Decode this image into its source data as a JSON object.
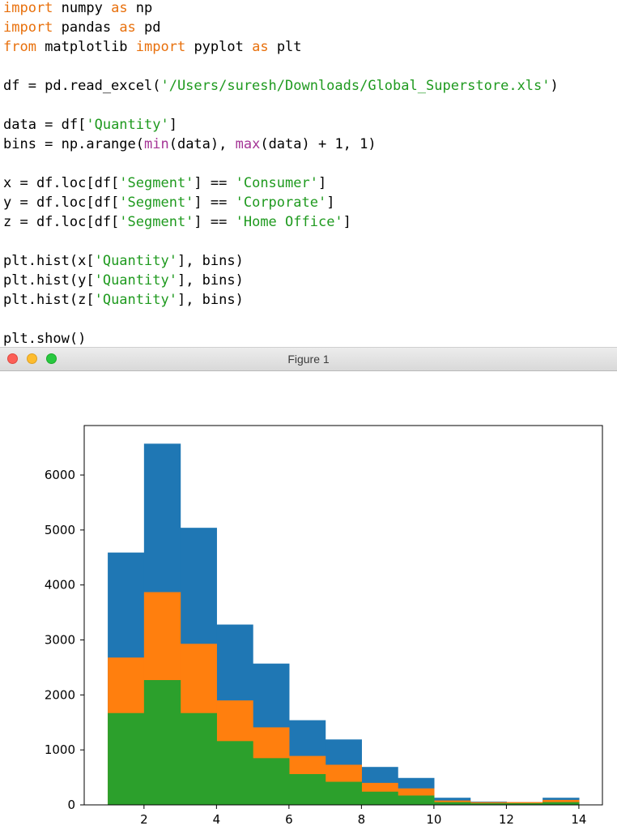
{
  "code": {
    "lines": [
      [
        {
          "t": "import",
          "c": "kw"
        },
        {
          "t": " numpy "
        },
        {
          "t": "as",
          "c": "kw"
        },
        {
          "t": " np"
        }
      ],
      [
        {
          "t": "import",
          "c": "kw"
        },
        {
          "t": " pandas "
        },
        {
          "t": "as",
          "c": "kw"
        },
        {
          "t": " pd"
        }
      ],
      [
        {
          "t": "from",
          "c": "kw"
        },
        {
          "t": " matplotlib "
        },
        {
          "t": "import",
          "c": "kw"
        },
        {
          "t": " pyplot "
        },
        {
          "t": "as",
          "c": "kw"
        },
        {
          "t": " plt"
        }
      ],
      [],
      [
        {
          "t": "df = pd.read_excel("
        },
        {
          "t": "'/Users/suresh/Downloads/Global_Superstore.xls'",
          "c": "str"
        },
        {
          "t": ")"
        }
      ],
      [],
      [
        {
          "t": "data = df["
        },
        {
          "t": "'Quantity'",
          "c": "str"
        },
        {
          "t": "]"
        }
      ],
      [
        {
          "t": "bins = np.arange("
        },
        {
          "t": "min",
          "c": "fn"
        },
        {
          "t": "(data), "
        },
        {
          "t": "max",
          "c": "fn"
        },
        {
          "t": "(data) + 1, 1)"
        }
      ],
      [],
      [
        {
          "t": "x = df.loc[df["
        },
        {
          "t": "'Segment'",
          "c": "str"
        },
        {
          "t": "] == "
        },
        {
          "t": "'Consumer'",
          "c": "str"
        },
        {
          "t": "]"
        }
      ],
      [
        {
          "t": "y = df.loc[df["
        },
        {
          "t": "'Segment'",
          "c": "str"
        },
        {
          "t": "] == "
        },
        {
          "t": "'Corporate'",
          "c": "str"
        },
        {
          "t": "]"
        }
      ],
      [
        {
          "t": "z = df.loc[df["
        },
        {
          "t": "'Segment'",
          "c": "str"
        },
        {
          "t": "] == "
        },
        {
          "t": "'Home Office'",
          "c": "str"
        },
        {
          "t": "]"
        }
      ],
      [],
      [
        {
          "t": "plt.hist(x["
        },
        {
          "t": "'Quantity'",
          "c": "str"
        },
        {
          "t": "], bins)"
        }
      ],
      [
        {
          "t": "plt.hist(y["
        },
        {
          "t": "'Quantity'",
          "c": "str"
        },
        {
          "t": "], bins)"
        }
      ],
      [
        {
          "t": "plt.hist(z["
        },
        {
          "t": "'Quantity'",
          "c": "str"
        },
        {
          "t": "], bins)"
        }
      ],
      [],
      [
        {
          "t": "plt.show()"
        }
      ]
    ]
  },
  "window": {
    "title": "Figure 1",
    "buttons": [
      "close",
      "minimize",
      "maximize"
    ]
  },
  "colors": {
    "keyword": "#e8700c",
    "string": "#1f9a1f",
    "builtin": "#a53596",
    "series_blue": "#1f77b4",
    "series_orange": "#ff7f0e",
    "series_green": "#2ca02c"
  },
  "chart_data": {
    "type": "bar",
    "title": "",
    "xlabel": "",
    "ylabel": "",
    "bin_edges": [
      1,
      2,
      3,
      4,
      5,
      6,
      7,
      8,
      9,
      10,
      11,
      12,
      13,
      14
    ],
    "xlim": [
      0.35,
      14.65
    ],
    "ylim": [
      0,
      6900
    ],
    "xticks": [
      2,
      4,
      6,
      8,
      10,
      12,
      14
    ],
    "yticks": [
      0,
      1000,
      2000,
      3000,
      4000,
      5000,
      6000
    ],
    "grid": false,
    "legend": "none",
    "series": [
      {
        "color": "#1f77b4",
        "values": [
          4590,
          6570,
          5040,
          3280,
          2570,
          1540,
          1190,
          690,
          490,
          130,
          60,
          50,
          130
        ]
      },
      {
        "color": "#ff7f0e",
        "values": [
          2680,
          3870,
          2930,
          1900,
          1410,
          890,
          730,
          400,
          300,
          80,
          50,
          50,
          90
        ]
      },
      {
        "color": "#2ca02c",
        "values": [
          1670,
          2270,
          1670,
          1160,
          850,
          560,
          420,
          240,
          170,
          50,
          30,
          30,
          50
        ]
      }
    ]
  }
}
